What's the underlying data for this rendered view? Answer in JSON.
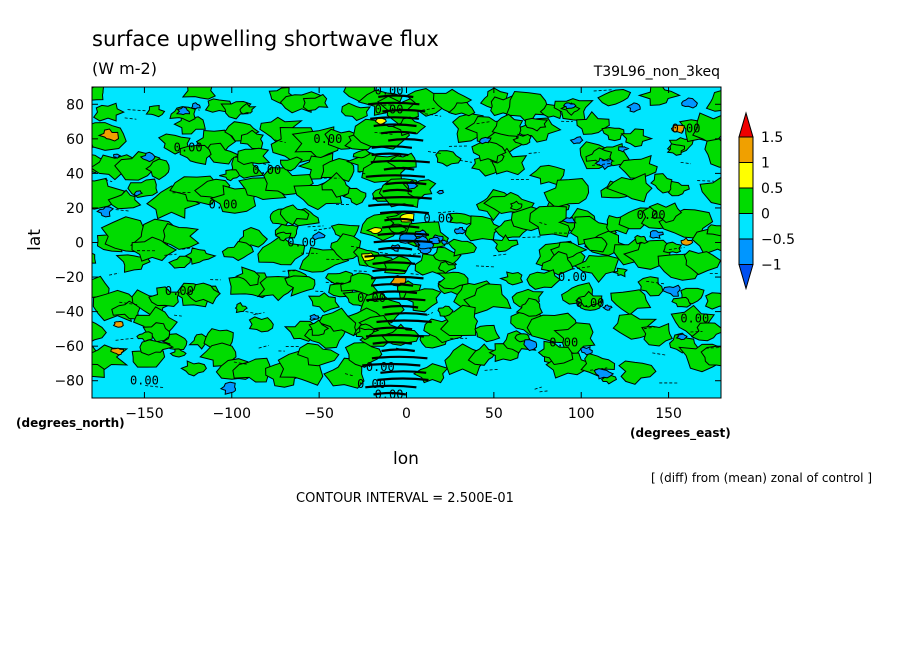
{
  "chart_data": {
    "type": "heatmap",
    "title": "surface upwelling shortwave flux",
    "units": "(W m-2)",
    "run_label": "T39L96_non_3keq",
    "xlabel": "lon",
    "ylabel": "lat",
    "x_units": "(degrees_east)",
    "y_units": "(degrees_north)",
    "xlim": [
      -180,
      180
    ],
    "ylim": [
      -90,
      90
    ],
    "x_ticks": [
      -150,
      -100,
      -50,
      0,
      50,
      100,
      150
    ],
    "y_ticks": [
      -80,
      -60,
      -40,
      -20,
      0,
      20,
      40,
      60,
      80
    ],
    "x_tick_labels": [
      "−150",
      "−100",
      "−50",
      "0",
      "50",
      "100",
      "150"
    ],
    "y_tick_labels": [
      "−80",
      "−60",
      "−40",
      "−20",
      "0",
      "20",
      "40",
      "60",
      "80"
    ],
    "contour_labels": [
      {
        "text": "0.00",
        "lon": -10,
        "lat": 88
      },
      {
        "text": "0.00",
        "lon": -10,
        "lat": 77
      },
      {
        "text": "0.00",
        "lon": -45,
        "lat": 60
      },
      {
        "text": "0.00",
        "lon": -125,
        "lat": 55
      },
      {
        "text": "0.00",
        "lon": 160,
        "lat": 66
      },
      {
        "text": "0.00",
        "lon": -80,
        "lat": 42
      },
      {
        "text": "0.00",
        "lon": -105,
        "lat": 22
      },
      {
        "text": "0.00",
        "lon": 18,
        "lat": 14
      },
      {
        "text": "0.00",
        "lon": 140,
        "lat": 16
      },
      {
        "text": "0.00",
        "lon": -60,
        "lat": 0
      },
      {
        "text": "0.00",
        "lon": -130,
        "lat": -28
      },
      {
        "text": "0.00",
        "lon": -20,
        "lat": -32
      },
      {
        "text": "0.00",
        "lon": 95,
        "lat": -20
      },
      {
        "text": "0.00",
        "lon": 105,
        "lat": -35
      },
      {
        "text": "0.00",
        "lon": 165,
        "lat": -44
      },
      {
        "text": "0.00",
        "lon": 90,
        "lat": -58
      },
      {
        "text": "0.00",
        "lon": -15,
        "lat": -72
      },
      {
        "text": "0.00",
        "lon": -20,
        "lat": -82
      },
      {
        "text": "0.00",
        "lon": -150,
        "lat": -80
      },
      {
        "text": "0.00",
        "lon": -10,
        "lat": -88
      }
    ],
    "colorbar": {
      "levels": [
        "1.5",
        "1",
        "0.5",
        "0",
        "−0.5",
        "−1"
      ],
      "colors": [
        "#f00000",
        "#f0a000",
        "#ffff00",
        "#00dc00",
        "#00e6ff",
        "#0096ff",
        "#0050f0"
      ]
    },
    "field_colors": {
      "neg1": "#0096ff",
      "neg05": "#00e6ff",
      "pos05": "#00dc00",
      "pos1": "#ffff00",
      "pos15": "#f0a000"
    },
    "note": "[ (diff) from (mean) zonal of control ]",
    "contour_interval": "CONTOUR INTERVAL = 2.500E-01"
  }
}
